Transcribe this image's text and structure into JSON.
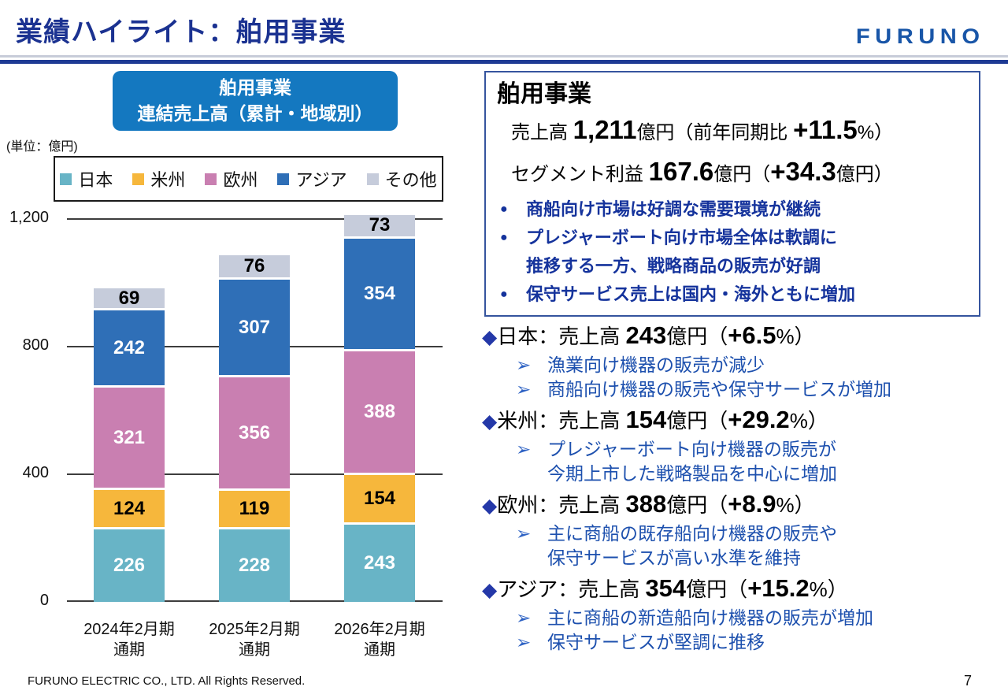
{
  "header": {
    "title": "業績ハイライト：舶用事業",
    "logo_text": "FURUNO"
  },
  "chart": {
    "title_line1": "舶用事業",
    "title_line2": "連結売上高（累計・地域別）",
    "unit_label": "(単位：億円)"
  },
  "chart_data": {
    "type": "bar",
    "stacked": true,
    "title": "舶用事業 連結売上高（累計・地域別）",
    "unit": "億円",
    "categories": [
      {
        "line1": "2024年2月期",
        "line2": "通期"
      },
      {
        "line1": "2025年2月期",
        "line2": "通期"
      },
      {
        "line1": "2026年2月期",
        "line2": "通期"
      }
    ],
    "series": [
      {
        "name": "日本",
        "color": "#68b4c6",
        "label_color": "#ffffff",
        "values": [
          226,
          228,
          243
        ]
      },
      {
        "name": "米州",
        "color": "#f6b73c",
        "label_color": "#000000",
        "values": [
          124,
          119,
          154
        ]
      },
      {
        "name": "欧州",
        "color": "#c97fb1",
        "label_color": "#ffffff",
        "values": [
          321,
          356,
          388
        ]
      },
      {
        "name": "アジア",
        "color": "#2f6fb7",
        "label_color": "#ffffff",
        "values": [
          242,
          307,
          354
        ]
      },
      {
        "name": "その他",
        "color": "#c6ccdb",
        "label_color": "#000000",
        "values": [
          69,
          76,
          73
        ]
      }
    ],
    "totals": [
      982,
      1086,
      1212
    ],
    "ylim": [
      0,
      1200
    ],
    "yticks": [
      0,
      400,
      800,
      1200
    ],
    "ytick_labels": [
      "0",
      "400",
      "800",
      "1,200"
    ],
    "grid": true,
    "legend_position": "top"
  },
  "panel": {
    "title": "舶用事業",
    "sales": {
      "label": "売上高 ",
      "value": "1,211",
      "mid": "億円（前年同期比 ",
      "delta": "+11.5",
      "end": "%）"
    },
    "profit": {
      "label": "セグメント利益 ",
      "value": "167.6",
      "mid": "億円（",
      "delta": "+34.3",
      "end": "億円）"
    },
    "bullets": [
      {
        "lines": [
          "商船向け市場は好調な需要環境が継続"
        ]
      },
      {
        "lines": [
          "プレジャーボート向け市場全体は軟調に",
          "推移する一方、戦略商品の販売が好調"
        ]
      },
      {
        "lines": [
          "保守サービス売上は国内・海外ともに増加"
        ]
      }
    ]
  },
  "regions": [
    {
      "name": "日本",
      "sep": "：売上高 ",
      "value": "243",
      "open": "億円（",
      "delta": "+6.5",
      "close": "%）",
      "points": [
        {
          "lines": [
            "漁業向け機器の販売が減少"
          ]
        },
        {
          "lines": [
            "商船向け機器の販売や保守サービスが増加"
          ]
        }
      ]
    },
    {
      "name": "米州",
      "sep": "：売上高 ",
      "value": "154",
      "open": "億円（",
      "delta": "+29.2",
      "close": "%）",
      "points": [
        {
          "lines": [
            "プレジャーボート向け機器の販売が",
            "今期上市した戦略製品を中心に増加"
          ]
        }
      ]
    },
    {
      "name": "欧州",
      "sep": "：売上高 ",
      "value": "388",
      "open": "億円（",
      "delta": "+8.9",
      "close": "%）",
      "points": [
        {
          "lines": [
            "主に商船の既存船向け機器の販売や",
            "保守サービスが高い水準を維持"
          ]
        }
      ]
    },
    {
      "name": "アジア",
      "sep": "：売上高 ",
      "value": "354",
      "open": "億円（",
      "delta": "+15.2",
      "close": "%）",
      "points": [
        {
          "lines": [
            "主に商船の新造船向け機器の販売が増加"
          ]
        },
        {
          "lines": [
            "保守サービスが堅調に推移"
          ]
        }
      ]
    }
  ],
  "icons": {
    "bullet": "●",
    "diamond": "◆",
    "arrow": "➢"
  },
  "colors": {
    "title_blue": "#1b3291",
    "logo_blue": "#1956a8",
    "separator_navy": "#1e3a94",
    "separator_gray": "#c7ccd9",
    "chart_box_blue": "#1478c0",
    "panel_border_blue": "#35549e",
    "bullet_text_blue": "#15339c",
    "region_sub_blue": "#1d50ae"
  },
  "footer": {
    "copyright": "FURUNO ELECTRIC CO., LTD. All Rights Reserved.",
    "page": "7"
  }
}
